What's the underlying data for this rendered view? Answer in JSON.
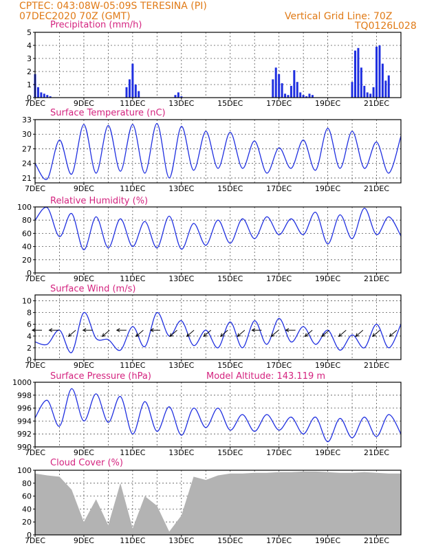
{
  "header": {
    "line1": "CPTEC:   043:08W-05:09S   TERESINA (PI)",
    "line2": "07DEC2020 70Z (GMT)",
    "right1": "Vertical Grid Line: 70Z",
    "right2": "TQ0126L028"
  },
  "colors": {
    "header": "#e07a16",
    "title": "#d4237f",
    "series": "#1f2fe0",
    "cloud": "#b3b3b3"
  },
  "x_dates": [
    "7DEC",
    "9DEC",
    "11DEC",
    "13DEC",
    "15DEC",
    "17DEC",
    "19DEC",
    "21DEC"
  ],
  "chart_data": [
    {
      "type": "bar",
      "title": "Precipitation (mm/h)",
      "y_ticks": [
        0,
        1,
        2,
        3,
        4,
        5
      ],
      "ylim": [
        0,
        5
      ],
      "x": [
        "07DEC 00Z",
        "07DEC 03Z",
        "07DEC 06Z",
        "07DEC 09Z",
        "07DEC 12Z",
        "07DEC 15Z",
        "10DEC 18Z",
        "10DEC 21Z",
        "11DEC 00Z",
        "11DEC 03Z",
        "11DEC 06Z",
        "12DEC 18Z",
        "12DEC 21Z",
        "13DEC 00Z",
        "16DEC 18Z",
        "16DEC 21Z",
        "17DEC 00Z",
        "17DEC 03Z",
        "17DEC 06Z",
        "17DEC 09Z",
        "17DEC 12Z",
        "17DEC 15Z",
        "17DEC 18Z",
        "17DEC 21Z",
        "18DEC 00Z",
        "18DEC 03Z",
        "18DEC 06Z",
        "18DEC 09Z",
        "20DEC 00Z",
        "20DEC 03Z",
        "20DEC 06Z",
        "20DEC 09Z",
        "20DEC 12Z",
        "20DEC 15Z",
        "20DEC 18Z",
        "20DEC 21Z",
        "21DEC 00Z",
        "21DEC 03Z",
        "21DEC 06Z",
        "21DEC 09Z",
        "21DEC 12Z"
      ],
      "values": [
        1.8,
        0.8,
        0.4,
        0.3,
        0.2,
        0.1,
        0.8,
        1.4,
        2.6,
        1.0,
        0.5,
        0.2,
        0.4,
        0.1,
        1.4,
        2.3,
        1.8,
        1.1,
        0.3,
        0.2,
        0.9,
        2.1,
        1.2,
        0.4,
        0.2,
        0.1,
        0.3,
        0.2,
        1.2,
        3.6,
        3.8,
        2.3,
        0.9,
        0.4,
        0.3,
        0.8,
        3.9,
        4.0,
        2.6,
        1.3,
        1.7
      ]
    },
    {
      "type": "line",
      "title": "Surface Temperature (nC)",
      "y_ticks": [
        21,
        24,
        27,
        30,
        33
      ],
      "ylim": [
        20,
        33
      ],
      "x": [
        "7DEC",
        "7.5DEC",
        "8DEC",
        "8.5DEC",
        "9DEC",
        "9.5DEC",
        "10DEC",
        "10.5DEC",
        "11DEC",
        "11.5DEC",
        "12DEC",
        "12.5DEC",
        "13DEC",
        "13.5DEC",
        "14DEC",
        "14.5DEC",
        "15DEC",
        "15.5DEC",
        "16DEC",
        "16.5DEC",
        "17DEC",
        "17.5DEC",
        "18DEC",
        "18.5DEC",
        "19DEC",
        "19.5DEC",
        "20DEC",
        "20.5DEC",
        "21DEC",
        "21.5DEC",
        "22DEC"
      ],
      "values": [
        24.0,
        20.8,
        28.8,
        21.8,
        32.0,
        22.0,
        31.8,
        22.4,
        32.0,
        22.0,
        32.2,
        21.0,
        31.6,
        22.6,
        30.6,
        23.0,
        30.4,
        23.0,
        28.6,
        22.0,
        27.2,
        23.0,
        28.8,
        22.6,
        31.2,
        23.0,
        30.6,
        23.0,
        28.4,
        22.0,
        29.6
      ]
    },
    {
      "type": "line",
      "title": "Relative Humidity (%)",
      "y_ticks": [
        0,
        20,
        40,
        60,
        80,
        100
      ],
      "ylim": [
        0,
        100
      ],
      "x": [
        "7DEC",
        "7.5DEC",
        "8DEC",
        "8.5DEC",
        "9DEC",
        "9.5DEC",
        "10DEC",
        "10.5DEC",
        "11DEC",
        "11.5DEC",
        "12DEC",
        "12.5DEC",
        "13DEC",
        "13.5DEC",
        "14DEC",
        "14.5DEC",
        "15DEC",
        "15.5DEC",
        "16DEC",
        "16.5DEC",
        "17DEC",
        "17.5DEC",
        "18DEC",
        "18.5DEC",
        "19DEC",
        "19.5DEC",
        "20DEC",
        "20.5DEC",
        "21DEC",
        "21.5DEC",
        "22DEC"
      ],
      "values": [
        80,
        99,
        55,
        90,
        35,
        85,
        38,
        82,
        40,
        78,
        38,
        86,
        36,
        75,
        42,
        80,
        45,
        82,
        52,
        85,
        58,
        82,
        58,
        92,
        44,
        88,
        52,
        98,
        58,
        85,
        56
      ]
    },
    {
      "type": "line",
      "title": "Surface Wind (m/s)",
      "y_ticks": [
        0,
        2,
        4,
        6,
        8,
        10
      ],
      "ylim": [
        0,
        11
      ],
      "x": [
        "7DEC",
        "7.5DEC",
        "8DEC",
        "8.5DEC",
        "9DEC",
        "9.5DEC",
        "10DEC",
        "10.5DEC",
        "11DEC",
        "11.5DEC",
        "12DEC",
        "12.5DEC",
        "13DEC",
        "13.5DEC",
        "14DEC",
        "14.5DEC",
        "15DEC",
        "15.5DEC",
        "16DEC",
        "16.5DEC",
        "17DEC",
        "17.5DEC",
        "18DEC",
        "18.5DEC",
        "19DEC",
        "19.5DEC",
        "20DEC",
        "20.5DEC",
        "21DEC",
        "21.5DEC",
        "22DEC"
      ],
      "values": [
        3.0,
        2.6,
        5.0,
        1.2,
        8.0,
        3.6,
        3.4,
        1.6,
        5.6,
        2.2,
        8.0,
        4.0,
        6.6,
        2.4,
        5.0,
        2.0,
        6.4,
        2.0,
        6.6,
        2.6,
        7.0,
        3.0,
        5.6,
        2.6,
        5.0,
        1.6,
        4.2,
        2.0,
        6.0,
        2.0,
        6.0
      ],
      "wind_direction_arrows": [
        "E",
        "E",
        "NE",
        "E",
        "NE",
        "E",
        "NE",
        "E",
        "NE",
        "NE",
        "NE",
        "NE",
        "NE",
        "E",
        "NE",
        "E",
        "NE",
        "NE",
        "NE",
        "NE",
        "NE",
        "NE"
      ]
    },
    {
      "type": "line",
      "title": "Surface Pressure (hPa)",
      "annotation": "Model Altitude: 143.119 m",
      "y_ticks": [
        990,
        992,
        994,
        996,
        998,
        1000
      ],
      "ylim": [
        990,
        1000
      ],
      "x": [
        "7DEC",
        "7.5DEC",
        "8DEC",
        "8.5DEC",
        "9DEC",
        "9.5DEC",
        "10DEC",
        "10.5DEC",
        "11DEC",
        "11.5DEC",
        "12DEC",
        "12.5DEC",
        "13DEC",
        "13.5DEC",
        "14DEC",
        "14.5DEC",
        "15DEC",
        "15.5DEC",
        "16DEC",
        "16.5DEC",
        "17DEC",
        "17.5DEC",
        "18DEC",
        "18.5DEC",
        "19DEC",
        "19.5DEC",
        "20DEC",
        "20.5DEC",
        "21DEC",
        "21.5DEC",
        "22DEC"
      ],
      "values": [
        994.5,
        997.2,
        993.2,
        999.0,
        994.0,
        998.2,
        993.8,
        997.8,
        992.0,
        997.0,
        992.4,
        996.2,
        991.8,
        996.0,
        993.0,
        996.0,
        992.6,
        995.0,
        992.4,
        995.0,
        992.6,
        994.6,
        992.0,
        994.6,
        990.8,
        994.4,
        991.4,
        994.6,
        991.6,
        995.0,
        992.0
      ]
    },
    {
      "type": "area",
      "title": "Cloud Cover (%)",
      "y_ticks": [
        0,
        20,
        40,
        60,
        80,
        100
      ],
      "ylim": [
        0,
        100
      ],
      "x": [
        "7DEC",
        "7.5DEC",
        "8DEC",
        "8.5DEC",
        "9DEC",
        "9.5DEC",
        "10DEC",
        "10.5DEC",
        "11DEC",
        "11.5DEC",
        "12DEC",
        "12.5DEC",
        "13DEC",
        "13.5DEC",
        "14DEC",
        "14.5DEC",
        "15DEC",
        "15.5DEC",
        "16DEC",
        "16.5DEC",
        "17DEC",
        "17.5DEC",
        "18DEC",
        "18.5DEC",
        "19DEC",
        "19.5DEC",
        "20DEC",
        "20.5DEC",
        "21DEC",
        "21.5DEC",
        "22DEC"
      ],
      "values": [
        95,
        92,
        90,
        70,
        20,
        55,
        15,
        80,
        10,
        60,
        45,
        5,
        30,
        90,
        85,
        92,
        95,
        95,
        96,
        96,
        97,
        97,
        98,
        98,
        97,
        96,
        96,
        97,
        96,
        95,
        95
      ]
    }
  ]
}
